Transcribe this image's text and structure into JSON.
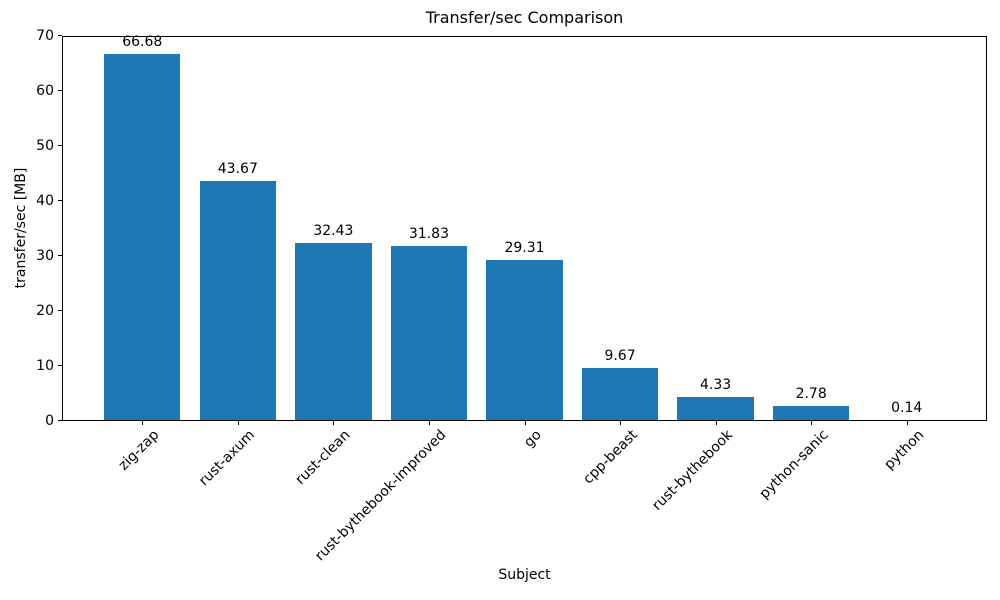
{
  "chart_data": {
    "type": "bar",
    "title": "Transfer/sec Comparison",
    "xlabel": "Subject",
    "ylabel": "transfer/sec [MB]",
    "categories": [
      "zig-zap",
      "rust-axum",
      "rust-clean",
      "rust-bythebook-improved",
      "go",
      "cpp-beast",
      "rust-bythebook",
      "python-sanic",
      "python"
    ],
    "values": [
      66.68,
      43.67,
      32.43,
      31.83,
      29.31,
      9.67,
      4.33,
      2.78,
      0.14
    ],
    "ylim": [
      0,
      70
    ],
    "yticks": [
      0,
      10,
      20,
      30,
      40,
      50,
      60,
      70
    ],
    "bar_color": "#1f77b4",
    "text_color": "#000000",
    "grid": false,
    "legend": false,
    "x_tick_rotation": 45,
    "value_label_decimals": 2
  }
}
